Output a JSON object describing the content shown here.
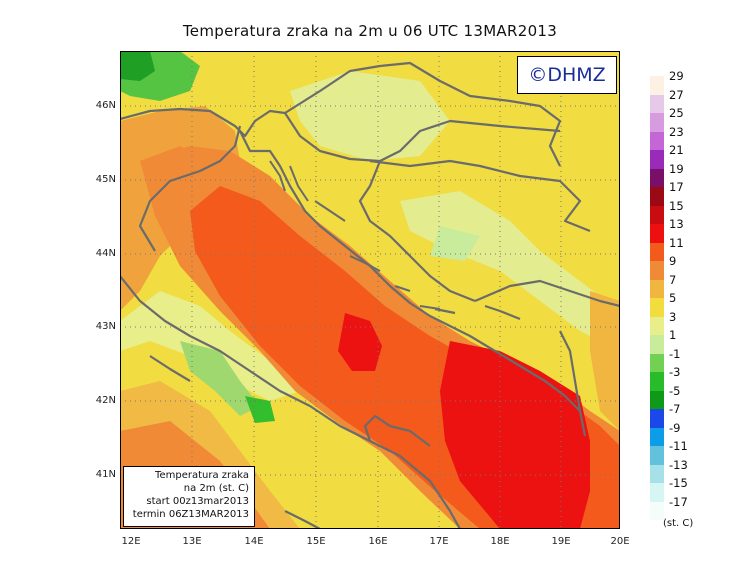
{
  "title": "Temperatura zraka na 2m u 06 UTC 13MAR2013",
  "logo_text": "©DHMZ",
  "info_box": {
    "line1": "Temperatura zraka",
    "line2": "na 2m (st. C)",
    "line3": "start 00z13mar2013",
    "line4": "termin 06Z13MAR2013"
  },
  "lat_labels": [
    "46N",
    "45N",
    "44N",
    "43N",
    "42N",
    "41N"
  ],
  "lon_labels": [
    "12E",
    "13E",
    "14E",
    "15E",
    "16E",
    "17E",
    "18E",
    "19E",
    "20E"
  ],
  "legend": {
    "unit": "(st. C)",
    "labels": [
      "29",
      "27",
      "25",
      "23",
      "21",
      "19",
      "17",
      "15",
      "13",
      "11",
      "9",
      "7",
      "5",
      "3",
      "1",
      "-1",
      "-3",
      "-5",
      "-7",
      "-9",
      "-11",
      "-13",
      "-15",
      "-17"
    ],
    "colors": [
      "#fdf1e4",
      "#e6c8e8",
      "#d79be0",
      "#c566d6",
      "#9a2ab8",
      "#7a0f6a",
      "#9b0a14",
      "#c80c10",
      "#ee1010",
      "#f25b1c",
      "#f08a36",
      "#f0b640",
      "#f2dc3e",
      "#e8ee8a",
      "#c8ec9c",
      "#72d052",
      "#28bc2a",
      "#0e9a18",
      "#1b48e8",
      "#0c9ce8",
      "#62c2dc",
      "#a6e0e8",
      "#d6f6f4",
      "#f4fcfc"
    ]
  },
  "colors": {
    "coast": "#6b6b6b",
    "sea_warm": "#f35a1c",
    "sea_hot": "#ec1212",
    "logo_blue": "#1a2b9c"
  }
}
